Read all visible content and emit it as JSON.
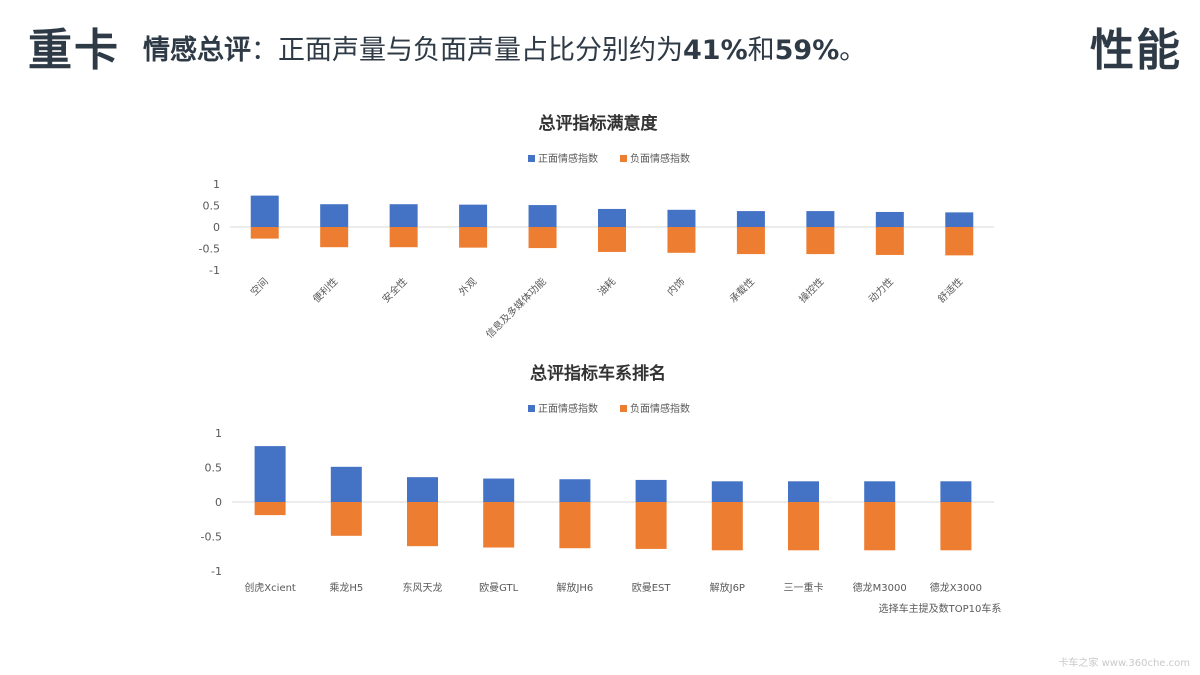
{
  "header": {
    "left_tag": "重卡",
    "summary_bold": "情感总评",
    "summary_text": "：正面声量与负面声量占比分别约为",
    "summary_pos_pct": "41%",
    "summary_and": "和",
    "summary_neg_pct": "59%",
    "summary_end": "。",
    "right_tag": "性能"
  },
  "colors": {
    "positive": "#4472c4",
    "negative": "#ed7d31",
    "text": "#2e3a46"
  },
  "chart_data": [
    {
      "type": "bar",
      "title": "总评指标满意度",
      "legend_position": "top",
      "categories": [
        "空间",
        "便利性",
        "安全性",
        "外观",
        "信息及多媒体功能",
        "油耗",
        "内饰",
        "承载性",
        "操控性",
        "动力性",
        "舒适性"
      ],
      "series": [
        {
          "name": "正面情感指数",
          "values": [
            0.73,
            0.53,
            0.53,
            0.52,
            0.51,
            0.42,
            0.4,
            0.37,
            0.37,
            0.35,
            0.34
          ]
        },
        {
          "name": "负面情感指数",
          "values": [
            -0.27,
            -0.47,
            -0.47,
            -0.48,
            -0.49,
            -0.58,
            -0.6,
            -0.63,
            -0.63,
            -0.65,
            -0.66
          ]
        }
      ],
      "y_ticks": [
        "1",
        "0.5",
        "0",
        "-0.5",
        "-1"
      ],
      "ylim": [
        -1,
        1
      ],
      "stacked": true,
      "x_label_rotation": "diagonal",
      "footnote": ""
    },
    {
      "type": "bar",
      "title": "总评指标车系排名",
      "legend_position": "top",
      "categories": [
        "创虎Xcient",
        "乘龙H5",
        "东风天龙",
        "欧曼GTL",
        "解放JH6",
        "欧曼EST",
        "解放J6P",
        "三一重卡",
        "德龙M3000",
        "德龙X3000"
      ],
      "series": [
        {
          "name": "正面情感指数",
          "values": [
            0.81,
            0.51,
            0.36,
            0.34,
            0.33,
            0.32,
            0.3,
            0.3,
            0.3,
            0.3
          ]
        },
        {
          "name": "负面情感指数",
          "values": [
            -0.19,
            -0.49,
            -0.64,
            -0.66,
            -0.67,
            -0.68,
            -0.7,
            -0.7,
            -0.7,
            -0.7
          ]
        }
      ],
      "y_ticks": [
        "1",
        "0.5",
        "0",
        "-0.5",
        "-1"
      ],
      "ylim": [
        -1,
        1
      ],
      "stacked": true,
      "x_label_rotation": "none",
      "footnote": "选择车主提及数TOP10车系"
    }
  ],
  "watermark": "卡车之家 www.360che.com"
}
